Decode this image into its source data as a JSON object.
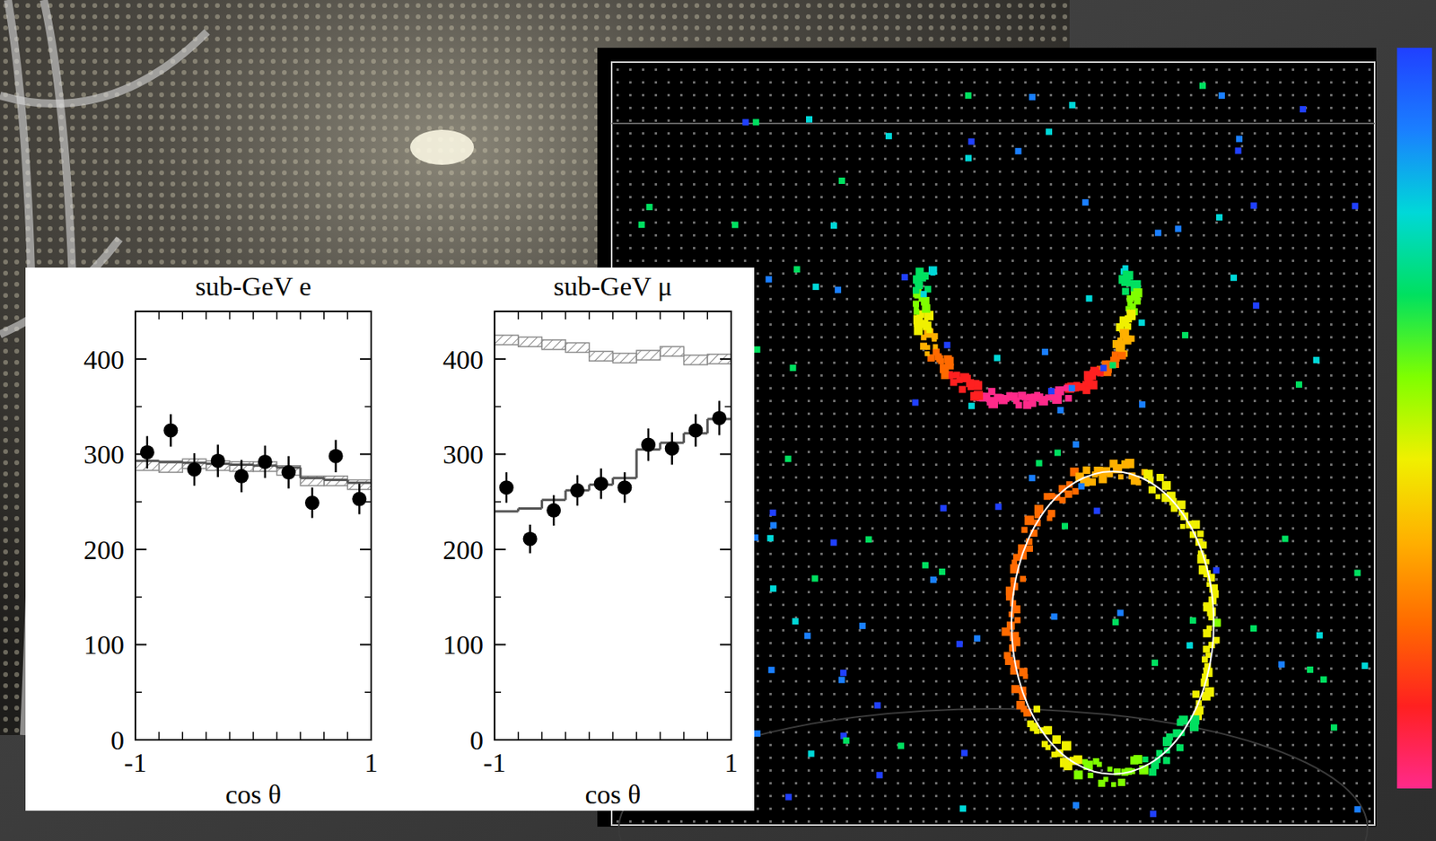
{
  "chart_data": [
    {
      "type": "histogram",
      "title": "sub-GeV e",
      "x_label": "cos θ",
      "bins": [
        -1,
        -0.8,
        -0.6,
        -0.4,
        -0.2,
        0,
        0.2,
        0.4,
        0.6,
        0.8,
        1
      ],
      "xlim": [
        -1,
        1
      ],
      "xticks": [
        -1,
        1
      ],
      "ylim": [
        0,
        450
      ],
      "yticks": [
        0,
        100,
        200,
        300,
        400
      ],
      "series": [
        {
          "type": "band",
          "line_style": "hatched",
          "color": "#8c8c8c",
          "values": [
            288,
            286,
            290,
            288,
            287,
            287,
            283,
            272,
            272,
            268
          ],
          "errors": [
            5,
            5,
            5,
            5,
            5,
            5,
            5,
            5,
            5,
            5
          ]
        },
        {
          "type": "step",
          "line_style": "solid",
          "color": "#555555",
          "values": [
            293,
            292,
            291,
            290,
            289,
            288,
            286,
            275,
            273,
            270
          ]
        },
        {
          "type": "scatter",
          "marker": "circle",
          "color": "#000000",
          "values": [
            302,
            325,
            284,
            293,
            277,
            292,
            281,
            249,
            298,
            253
          ],
          "errors": [
            17,
            17,
            17,
            17,
            17,
            17,
            17,
            16,
            17,
            16
          ]
        }
      ]
    },
    {
      "type": "histogram",
      "title": "sub-GeV μ",
      "x_label": "cos θ",
      "bins": [
        -1,
        -0.8,
        -0.6,
        -0.4,
        -0.2,
        0,
        0.2,
        0.4,
        0.6,
        0.8,
        1
      ],
      "xlim": [
        -1,
        1
      ],
      "xticks": [
        -1,
        1
      ],
      "ylim": [
        0,
        450
      ],
      "yticks": [
        0,
        100,
        200,
        300,
        400
      ],
      "series": [
        {
          "type": "band",
          "line_style": "hatched",
          "color": "#8c8c8c",
          "values": [
            420,
            418,
            415,
            412,
            403,
            401,
            404,
            408,
            399,
            400
          ],
          "errors": [
            5,
            5,
            5,
            5,
            5,
            5,
            5,
            5,
            5,
            5
          ]
        },
        {
          "type": "step",
          "line_style": "solid",
          "color": "#555555",
          "values": [
            240,
            243,
            252,
            262,
            268,
            275,
            305,
            312,
            322,
            337
          ]
        },
        {
          "type": "scatter",
          "marker": "circle",
          "color": "#000000",
          "values": [
            265,
            211,
            241,
            262,
            269,
            265,
            310,
            306,
            325,
            338
          ],
          "errors": [
            16,
            15,
            16,
            16,
            16,
            16,
            17,
            17,
            17,
            18
          ]
        }
      ]
    }
  ]
}
